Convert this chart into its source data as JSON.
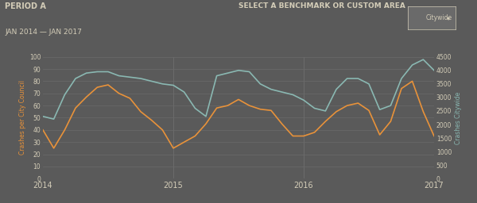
{
  "background_color": "#5a5a5a",
  "plot_bg_color": "#5a5a5a",
  "grid_color": "#6b6b6b",
  "title_period": "PERIOD A",
  "title_dates": "JAN 2014 — JAN 2017",
  "benchmark_label": "SELECT A BENCHMARK OR CUSTOM AREA",
  "benchmark_value": "Citywide",
  "ylabel_left": "Crashes per City Council",
  "ylabel_right": "Crashes Citywide",
  "orange_color": "#e8923a",
  "green_color": "#8ab8b2",
  "text_color": "#d4cdb8",
  "x_ticks": [
    2014,
    2015,
    2016,
    2017
  ],
  "ylim_left": [
    0,
    100
  ],
  "ylim_right": [
    0,
    4500
  ],
  "yticks_left": [
    0,
    10,
    20,
    30,
    40,
    50,
    60,
    70,
    80,
    90,
    100
  ],
  "yticks_right": [
    0,
    500,
    1000,
    1500,
    2000,
    2500,
    3000,
    3500,
    4000,
    4500
  ],
  "orange_x": [
    2014.0,
    2014.083,
    2014.167,
    2014.25,
    2014.333,
    2014.417,
    2014.5,
    2014.583,
    2014.667,
    2014.75,
    2014.833,
    2014.917,
    2015.0,
    2015.083,
    2015.167,
    2015.25,
    2015.333,
    2015.417,
    2015.5,
    2015.583,
    2015.667,
    2015.75,
    2015.833,
    2015.917,
    2016.0,
    2016.083,
    2016.167,
    2016.25,
    2016.333,
    2016.417,
    2016.5,
    2016.583,
    2016.667,
    2016.75,
    2016.833,
    2016.917,
    2017.0
  ],
  "orange_y": [
    40,
    25,
    40,
    58,
    67,
    75,
    77,
    70,
    66,
    55,
    48,
    40,
    25,
    30,
    35,
    45,
    58,
    60,
    65,
    60,
    57,
    56,
    45,
    35,
    35,
    38,
    47,
    55,
    60,
    62,
    56,
    36,
    47,
    74,
    80,
    55,
    35
  ],
  "green_x": [
    2014.0,
    2014.083,
    2014.167,
    2014.25,
    2014.333,
    2014.417,
    2014.5,
    2014.583,
    2014.667,
    2014.75,
    2014.833,
    2014.917,
    2015.0,
    2015.083,
    2015.167,
    2015.25,
    2015.333,
    2015.417,
    2015.5,
    2015.583,
    2015.667,
    2015.75,
    2015.833,
    2015.917,
    2016.0,
    2016.083,
    2016.167,
    2016.25,
    2016.333,
    2016.417,
    2016.5,
    2016.583,
    2016.667,
    2016.75,
    2016.833,
    2016.917,
    2017.0
  ],
  "green_y": [
    2300,
    2200,
    3100,
    3700,
    3900,
    3950,
    3950,
    3800,
    3750,
    3700,
    3600,
    3500,
    3450,
    3200,
    2600,
    2300,
    3800,
    3900,
    4000,
    3950,
    3500,
    3300,
    3200,
    3100,
    2900,
    2600,
    2500,
    3300,
    3700,
    3700,
    3500,
    2550,
    2700,
    3700,
    4200,
    4400,
    4000
  ]
}
